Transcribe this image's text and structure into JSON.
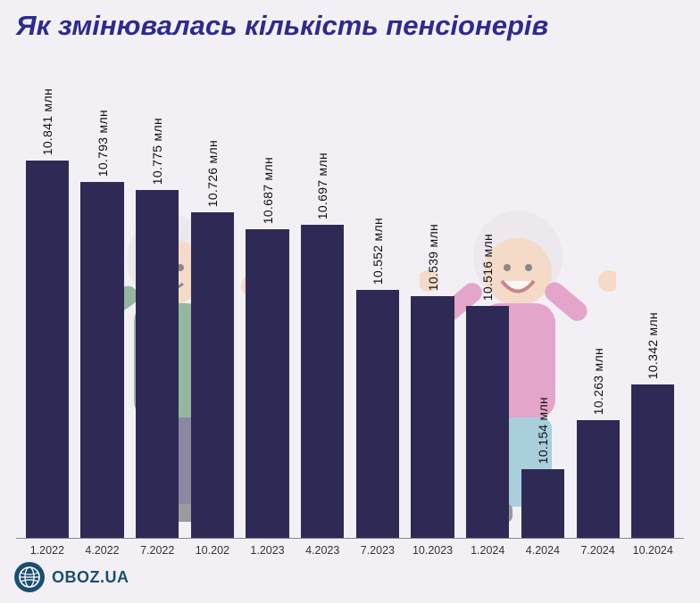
{
  "chart": {
    "type": "bar",
    "title": "Як змінювалась кількість пенсіонерів",
    "title_color": "#2e2a8f",
    "title_fontsize": 31,
    "background_color": "#f2eff5",
    "bar_color": "#2f2a55",
    "axis_color": "#888888",
    "label_color": "#111111",
    "label_fontsize": 14,
    "tick_fontsize": 12.5,
    "bar_width_ratio": 0.78,
    "value_min": 10.0,
    "value_max": 10.95,
    "categories": [
      "1.2022",
      "4.2022",
      "7.2022",
      "10.202",
      "1.2023",
      "4.2023",
      "7.2023",
      "10.2023",
      "1.2024",
      "4.2024",
      "7.2024",
      "10.2024"
    ],
    "values": [
      10.841,
      10.793,
      10.775,
      10.726,
      10.687,
      10.697,
      10.552,
      10.539,
      10.516,
      10.154,
      10.263,
      10.342
    ],
    "value_labels": [
      "10.841 млн",
      "10.793 млн",
      "10.775 млн",
      "10.726 млн",
      "10.687 млн",
      "10.697 млн",
      "10.552 млн",
      "10.539 млн",
      "10.516 млн",
      "10.154 млн",
      "10.263 млн",
      "10.342 млн"
    ],
    "bg_figures": {
      "skin": "#f7cba4",
      "hair": "#e9e2ea",
      "left_top": "#4a8a5a",
      "left_bottom": "#3a3560",
      "right_top": "#d96aa8",
      "right_bottom": "#6fb4c9"
    }
  },
  "footer": {
    "text": "OBOZ.UA",
    "logo_bg": "#1b4f72",
    "logo_fg": "#ffffff",
    "text_color": "#1b4f72"
  }
}
